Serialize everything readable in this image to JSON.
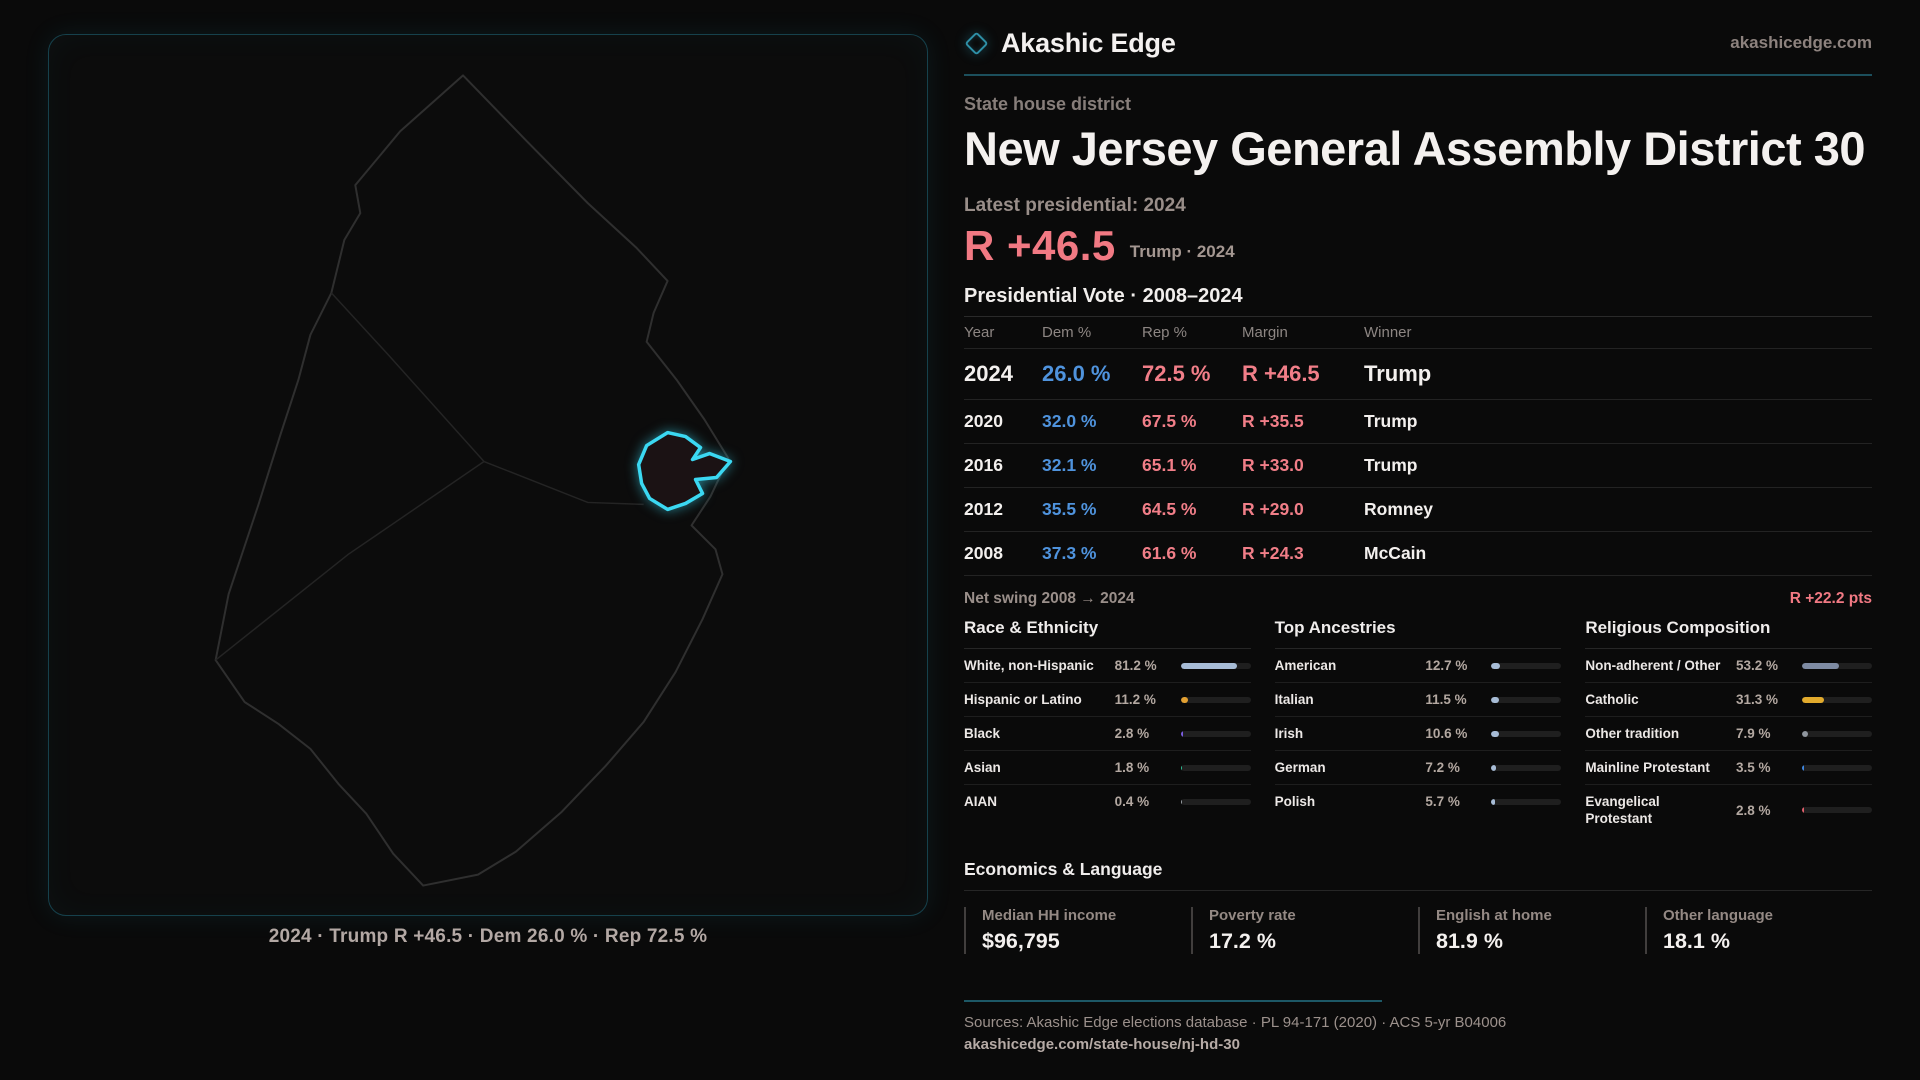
{
  "brand": {
    "name": "Akashic Edge",
    "domain": "akashicedge.com",
    "logo_icon": "diamond-outline",
    "accent_color": "#2e8fa6"
  },
  "page": {
    "eyebrow": "State house district",
    "title": "New Jersey General Assembly District 30"
  },
  "map_panel": {
    "caption": "2024 · Trump R +46.5 · Dem 26.0 % · Rep 72.5 %",
    "district_color": "#3bd8f2",
    "outline_color": "#2f2f2f"
  },
  "latest": {
    "label": "Latest presidential: 2024",
    "margin": "R +46.5",
    "context": "Trump · 2024"
  },
  "vote_table": {
    "title": "Presidential Vote · 2008–2024",
    "columns": [
      "Year",
      "Dem %",
      "Rep %",
      "Margin",
      "Winner"
    ],
    "rows": [
      {
        "year": "2024",
        "dem": "26.0 %",
        "rep": "72.5 %",
        "margin": "R +46.5",
        "winner": "Trump",
        "emphasis": true
      },
      {
        "year": "2020",
        "dem": "32.0 %",
        "rep": "67.5 %",
        "margin": "R +35.5",
        "winner": "Trump",
        "emphasis": false
      },
      {
        "year": "2016",
        "dem": "32.1 %",
        "rep": "65.1 %",
        "margin": "R +33.0",
        "winner": "Trump",
        "emphasis": false
      },
      {
        "year": "2012",
        "dem": "35.5 %",
        "rep": "64.5 %",
        "margin": "R +29.0",
        "winner": "Romney",
        "emphasis": false
      },
      {
        "year": "2008",
        "dem": "37.3 %",
        "rep": "61.6 %",
        "margin": "R +24.3",
        "winner": "McCain",
        "emphasis": false
      }
    ]
  },
  "net_swing": {
    "label": "Net swing 2008 → 2024",
    "value": "R +22.2 pts"
  },
  "demographics": [
    {
      "title": "Race & Ethnicity",
      "rows": [
        {
          "label": "White, non-Hispanic",
          "value": "81.2 %",
          "pct": 81.2,
          "color": "#a7bcd6"
        },
        {
          "label": "Hispanic or Latino",
          "value": "11.2 %",
          "pct": 11.2,
          "color": "#e2a032"
        },
        {
          "label": "Black",
          "value": "2.8 %",
          "pct": 2.8,
          "color": "#7a5de0"
        },
        {
          "label": "Asian",
          "value": "1.8 %",
          "pct": 1.8,
          "color": "#2fbf96"
        },
        {
          "label": "AIAN",
          "value": "0.4 %",
          "pct": 0.4,
          "color": "#9aa0a6"
        }
      ]
    },
    {
      "title": "Top Ancestries",
      "rows": [
        {
          "label": "American",
          "value": "12.7 %",
          "pct": 12.7,
          "color": "#a7bcd6"
        },
        {
          "label": "Italian",
          "value": "11.5 %",
          "pct": 11.5,
          "color": "#a7bcd6"
        },
        {
          "label": "Irish",
          "value": "10.6 %",
          "pct": 10.6,
          "color": "#a7bcd6"
        },
        {
          "label": "German",
          "value": "7.2 %",
          "pct": 7.2,
          "color": "#a7bcd6"
        },
        {
          "label": "Polish",
          "value": "5.7 %",
          "pct": 5.7,
          "color": "#a7bcd6"
        }
      ]
    },
    {
      "title": "Religious Composition",
      "rows": [
        {
          "label": "Non-adherent / Other",
          "value": "53.2 %",
          "pct": 53.2,
          "color": "#7e8ba3"
        },
        {
          "label": "Catholic",
          "value": "31.3 %",
          "pct": 31.3,
          "color": "#e2ab2d"
        },
        {
          "label": "Other tradition",
          "value": "7.9 %",
          "pct": 7.9,
          "color": "#8f969e"
        },
        {
          "label": "Mainline Protestant",
          "value": "3.5 %",
          "pct": 3.5,
          "color": "#3f87e0"
        },
        {
          "label": "Evangelical Protestant",
          "value": "2.8 %",
          "pct": 2.8,
          "color": "#e05f6b"
        }
      ]
    }
  ],
  "economics": {
    "title": "Economics & Language",
    "stats": [
      {
        "label": "Median HH income",
        "value": "$96,795"
      },
      {
        "label": "Poverty rate",
        "value": "17.2 %"
      },
      {
        "label": "English at home",
        "value": "81.9 %"
      },
      {
        "label": "Other language",
        "value": "18.1 %"
      }
    ]
  },
  "footer": {
    "sources": "Sources: Akashic Edge elections database · PL 94-171 (2020) · ACS 5-yr B04006",
    "url": "akashicedge.com/state-house/nj-hd-30"
  },
  "colors": {
    "dem_blue": "#4f93dd",
    "rep_red": "#f17983",
    "teal_rule": "#1c4f5c"
  }
}
